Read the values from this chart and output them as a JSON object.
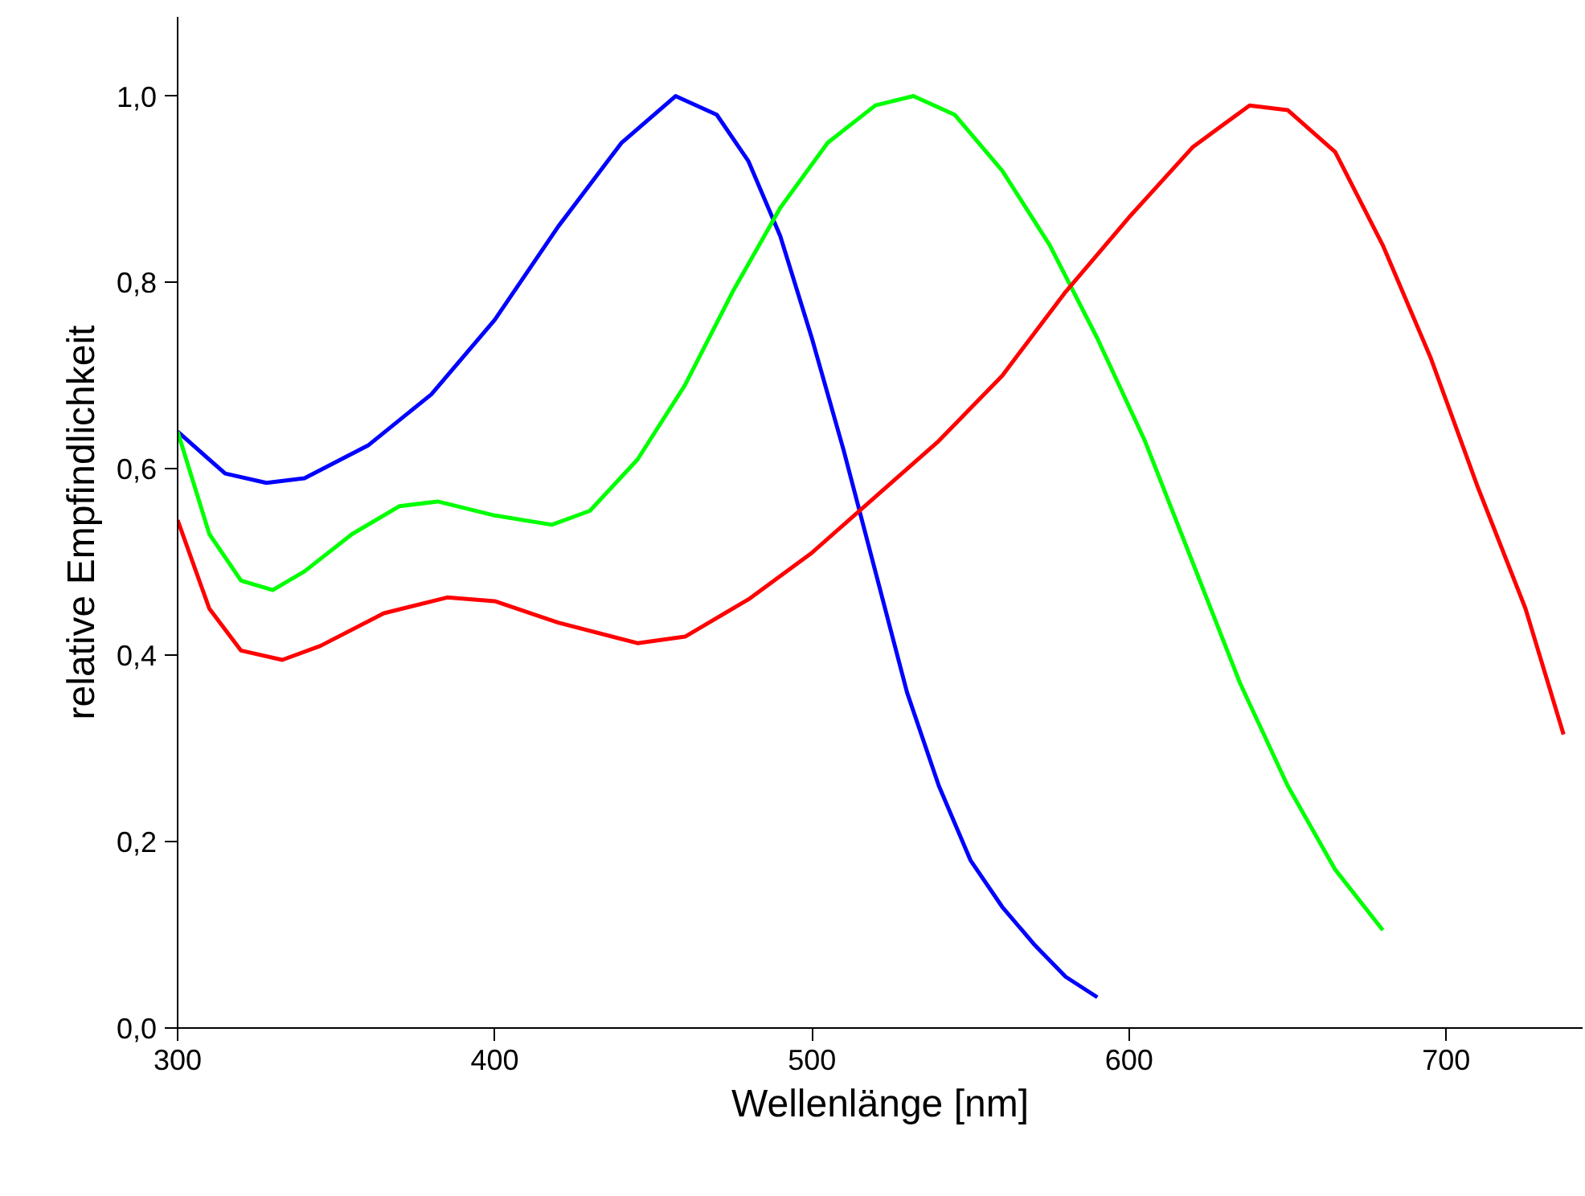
{
  "chart_data": {
    "type": "line",
    "xlabel": "Wellenlänge [nm]",
    "ylabel": "relative Empfindlichkeit",
    "xlim": [
      300,
      743
    ],
    "ylim": [
      0,
      1.085
    ],
    "xticks": [
      300,
      400,
      500,
      600,
      700
    ],
    "yticks": [
      {
        "value": 0,
        "label": "0,0"
      },
      {
        "value": 0.2,
        "label": "0,2"
      },
      {
        "value": 0.4,
        "label": "0,4"
      },
      {
        "value": 0.6,
        "label": "0,6"
      },
      {
        "value": 0.8,
        "label": "0,8"
      },
      {
        "value": 1.0,
        "label": "1,0"
      }
    ],
    "grid": false,
    "marker": "none",
    "line_style": "solid",
    "series": [
      {
        "color": "#0000ff",
        "x": [
          300,
          315,
          328,
          340,
          360,
          380,
          400,
          420,
          440,
          457,
          470,
          480,
          490,
          500,
          510,
          520,
          530,
          540,
          550,
          560,
          570,
          580,
          590
        ],
        "values": [
          0.64,
          0.595,
          0.585,
          0.59,
          0.625,
          0.68,
          0.76,
          0.86,
          0.95,
          1.0,
          0.98,
          0.93,
          0.85,
          0.74,
          0.62,
          0.49,
          0.36,
          0.26,
          0.18,
          0.13,
          0.09,
          0.055,
          0.033
        ]
      },
      {
        "color": "#00ff00",
        "x": [
          300,
          310,
          320,
          330,
          340,
          355,
          370,
          382,
          400,
          418,
          430,
          445,
          460,
          475,
          490,
          505,
          520,
          532,
          545,
          560,
          575,
          590,
          605,
          620,
          635,
          650,
          665,
          680
        ],
        "values": [
          0.64,
          0.53,
          0.48,
          0.47,
          0.49,
          0.53,
          0.56,
          0.565,
          0.55,
          0.54,
          0.555,
          0.61,
          0.69,
          0.79,
          0.88,
          0.95,
          0.99,
          1.0,
          0.98,
          0.92,
          0.84,
          0.74,
          0.63,
          0.5,
          0.37,
          0.26,
          0.17,
          0.105
        ]
      },
      {
        "color": "#ff0000",
        "x": [
          300,
          310,
          320,
          333,
          345,
          365,
          385,
          400,
          420,
          445,
          460,
          480,
          500,
          520,
          540,
          560,
          580,
          600,
          620,
          638,
          650,
          665,
          680,
          695,
          710,
          725,
          737
        ],
        "values": [
          0.545,
          0.45,
          0.405,
          0.395,
          0.41,
          0.445,
          0.462,
          0.458,
          0.435,
          0.413,
          0.42,
          0.46,
          0.51,
          0.57,
          0.63,
          0.7,
          0.79,
          0.87,
          0.945,
          0.99,
          0.985,
          0.94,
          0.84,
          0.72,
          0.58,
          0.45,
          0.315
        ]
      }
    ]
  }
}
